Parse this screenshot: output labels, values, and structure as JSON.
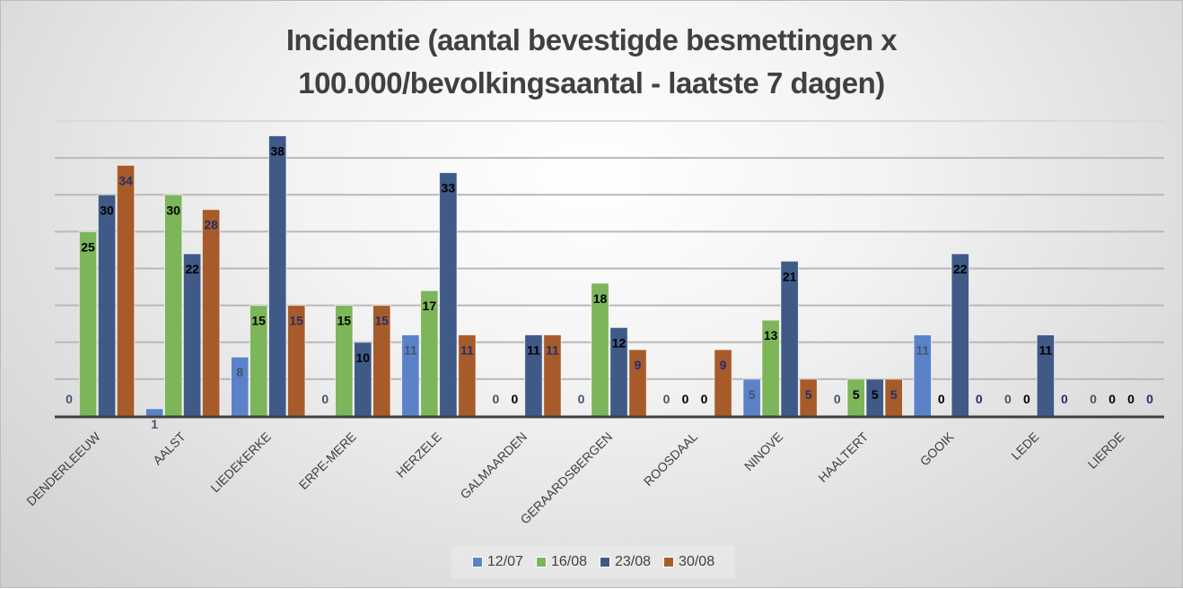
{
  "chart_data": {
    "type": "bar",
    "title_lines": [
      "Incidentie (aantal bevestigde besmettingen x",
      "100.000/bevolkingsaantal - laatste 7 dagen)"
    ],
    "title": "Incidentie (aantal bevestigde besmettingen x 100.000/bevolkingsaantal - laatste 7 dagen)",
    "xlabel": "",
    "ylabel": "",
    "ylim": [
      0,
      40
    ],
    "y_gridline_step": 5,
    "grid": true,
    "y_axis_labels_visible": false,
    "legend_position": "bottom",
    "categories": [
      "DENDERLEEUW",
      "AALST",
      "LIEDEKERKE",
      "ERPE-MERE",
      "HERZELE",
      "GALMAARDEN",
      "GERAARDSBERGEN",
      "ROOSDAAL",
      "NINOVE",
      "HAALTERT",
      "GOOIK",
      "LEDE",
      "LIERDE"
    ],
    "series": [
      {
        "name": "12/07",
        "color": "#5b82c9",
        "label_color": "#44546a",
        "values": [
          0,
          1,
          8,
          0,
          11,
          0,
          0,
          0,
          5,
          0,
          11,
          0,
          0
        ]
      },
      {
        "name": "16/08",
        "color": "#7db55a",
        "label_color": "#000000",
        "values": [
          25,
          30,
          15,
          15,
          17,
          0,
          18,
          0,
          13,
          5,
          0,
          0,
          0
        ]
      },
      {
        "name": "23/08",
        "color": "#3f5a87",
        "label_color": "#000000",
        "values": [
          30,
          22,
          38,
          10,
          33,
          11,
          12,
          0,
          21,
          5,
          22,
          11,
          0
        ]
      },
      {
        "name": "30/08",
        "color": "#a85b2a",
        "label_color": "#1f3068",
        "values": [
          34,
          28,
          15,
          15,
          11,
          11,
          9,
          9,
          5,
          5,
          0,
          0,
          0
        ]
      }
    ]
  }
}
